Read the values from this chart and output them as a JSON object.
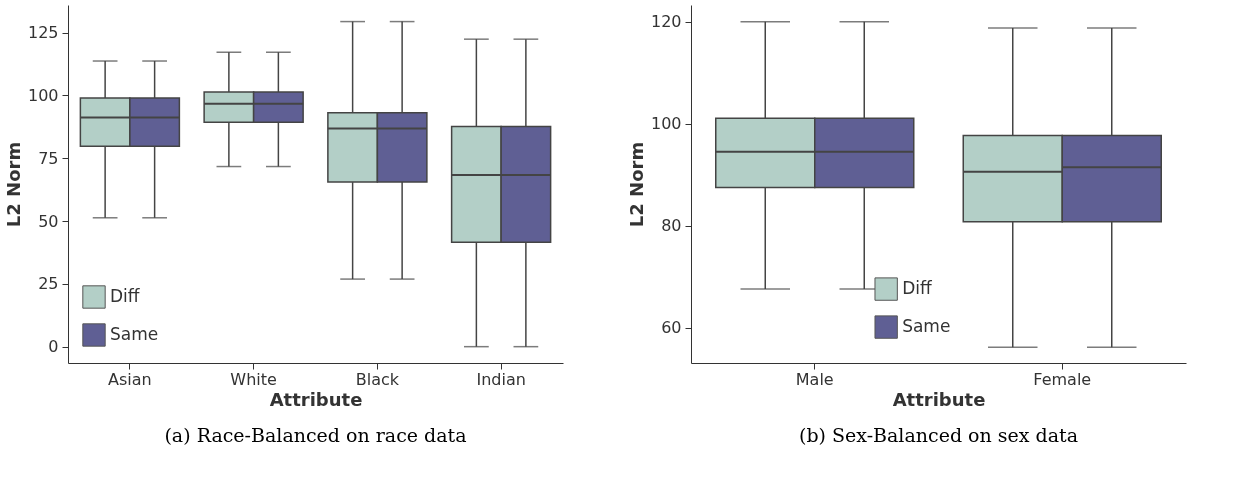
{
  "chart_data": [
    {
      "type": "box",
      "title": "(a) Race-Balanced on race data",
      "xlabel": "Attribute",
      "ylabel": "L2 Norm",
      "categories": [
        "Asian",
        "White",
        "Black",
        "Indian"
      ],
      "ylim": [
        -6.5,
        136
      ],
      "yticks": [
        0,
        25,
        50,
        75,
        100,
        125
      ],
      "legend": "bottom left",
      "series": [
        {
          "name": "Diff",
          "color": "#b3cfc7",
          "boxes": [
            {
              "low": 51.3,
              "q1": 79.8,
              "median": 91.2,
              "q3": 99,
              "high": 113.7
            },
            {
              "low": 71.7,
              "q1": 89.3,
              "median": 96.7,
              "q3": 101.4,
              "high": 117.2
            },
            {
              "low": 26.9,
              "q1": 65.5,
              "median": 86.8,
              "q3": 93.1,
              "high": 129.4
            },
            {
              "low": 0,
              "q1": 41.6,
              "median": 68.3,
              "q3": 87.6,
              "high": 122.4
            }
          ]
        },
        {
          "name": "Same",
          "color": "#5f5f94",
          "boxes": [
            {
              "low": 51.3,
              "q1": 79.8,
              "median": 91.2,
              "q3": 99,
              "high": 113.7
            },
            {
              "low": 71.7,
              "q1": 89.3,
              "median": 96.7,
              "q3": 101.4,
              "high": 117.2
            },
            {
              "low": 26.9,
              "q1": 65.5,
              "median": 86.8,
              "q3": 93.1,
              "high": 129.4
            },
            {
              "low": 0,
              "q1": 41.6,
              "median": 68.3,
              "q3": 87.6,
              "high": 122.4
            }
          ]
        }
      ]
    },
    {
      "type": "box",
      "title": "(b) Sex-Balanced on sex data",
      "xlabel": "Attribute",
      "ylabel": "L2 Norm",
      "categories": [
        "Male",
        "Female"
      ],
      "ylim": [
        53.1,
        123.3
      ],
      "yticks": [
        60,
        80,
        100,
        120
      ],
      "legend": "bottom",
      "series": [
        {
          "name": "Diff",
          "color": "#b3cfc7",
          "boxes": [
            {
              "low": 67.6,
              "q1": 87.5,
              "median": 94.5,
              "q3": 101.1,
              "high": 120
            },
            {
              "low": 56.2,
              "q1": 80.8,
              "median": 90.6,
              "q3": 97.7,
              "high": 118.8
            }
          ]
        },
        {
          "name": "Same",
          "color": "#5f5f94",
          "boxes": [
            {
              "low": 67.6,
              "q1": 87.5,
              "median": 94.5,
              "q3": 101.1,
              "high": 120
            },
            {
              "low": 56.2,
              "q1": 80.8,
              "median": 91.5,
              "q3": 97.7,
              "high": 118.8
            }
          ]
        }
      ]
    }
  ]
}
